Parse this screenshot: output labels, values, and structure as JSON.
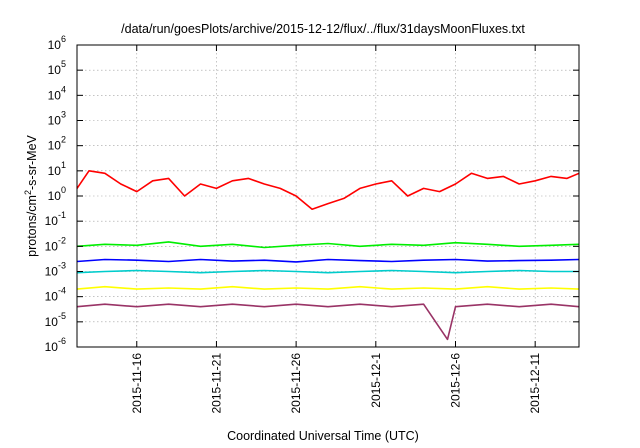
{
  "chart_data": {
    "type": "line",
    "title": "/data/run/goesPlots/archive/2015-12-12/flux/../flux/31daysMoonFluxes.txt",
    "xlabel": "Coordinated Universal Time (UTC)",
    "ylabel": {
      "base": "protons/cm",
      "sup": "2",
      "rest": "-s-sr-MeV"
    },
    "x_unit": "date",
    "xlim": [
      "2015-11-12T06:00",
      "2015-12-13T18:00"
    ],
    "x_ticks": [
      {
        "date": "2015-11-16",
        "label": "2015-11-16"
      },
      {
        "date": "2015-11-21",
        "label": "2015-11-21"
      },
      {
        "date": "2015-11-26",
        "label": "2015-11-26"
      },
      {
        "date": "2015-12-01",
        "label": "2015-12-1"
      },
      {
        "date": "2015-12-06",
        "label": "2015-12-6"
      },
      {
        "date": "2015-12-11",
        "label": "2015-12-11"
      }
    ],
    "y_scale": "log",
    "ylim": [
      1e-06,
      1000000.0
    ],
    "y_ticks": [
      {
        "value": 1e-06,
        "base": "10",
        "exp": "-6"
      },
      {
        "value": 1e-05,
        "base": "10",
        "exp": "-5"
      },
      {
        "value": 0.0001,
        "base": "10",
        "exp": "-4"
      },
      {
        "value": 0.001,
        "base": "10",
        "exp": "-3"
      },
      {
        "value": 0.01,
        "base": "10",
        "exp": "-2"
      },
      {
        "value": 0.1,
        "base": "10",
        "exp": "-1"
      },
      {
        "value": 1,
        "base": "10",
        "exp": "0"
      },
      {
        "value": 10,
        "base": "10",
        "exp": "1"
      },
      {
        "value": 100,
        "base": "10",
        "exp": "2"
      },
      {
        "value": 1000,
        "base": "10",
        "exp": "3"
      },
      {
        "value": 10000,
        "base": "10",
        "exp": "4"
      },
      {
        "value": 100000,
        "base": "10",
        "exp": "5"
      },
      {
        "value": 1000000,
        "base": "10",
        "exp": "6"
      }
    ],
    "grid": true,
    "legend": "none",
    "series": [
      {
        "color": "#ff0000",
        "x": [
          "2015-11-12T06:00",
          "2015-11-13T00:00",
          "2015-11-14T00:00",
          "2015-11-15T00:00",
          "2015-11-16T00:00",
          "2015-11-17T00:00",
          "2015-11-18T00:00",
          "2015-11-19T00:00",
          "2015-11-20T00:00",
          "2015-11-21T00:00",
          "2015-11-22T00:00",
          "2015-11-23T00:00",
          "2015-11-24T00:00",
          "2015-11-25T00:00",
          "2015-11-26T00:00",
          "2015-11-27T00:00",
          "2015-11-28T00:00",
          "2015-11-29T00:00",
          "2015-11-30T00:00",
          "2015-12-01T00:00",
          "2015-12-02T00:00",
          "2015-12-03T00:00",
          "2015-12-04T00:00",
          "2015-12-05T00:00",
          "2015-12-06T00:00",
          "2015-12-07T00:00",
          "2015-12-08T00:00",
          "2015-12-09T00:00",
          "2015-12-10T00:00",
          "2015-12-11T00:00",
          "2015-12-12T00:00",
          "2015-12-13T00:00",
          "2015-12-13T18:00"
        ],
        "y": [
          2,
          10,
          8,
          3,
          1.5,
          4,
          5,
          1,
          3,
          2,
          4,
          5,
          3,
          2,
          1,
          0.3,
          0.5,
          0.8,
          2,
          3,
          4,
          1,
          2,
          1.5,
          3,
          8,
          5,
          6,
          3,
          4,
          6,
          5,
          8
        ]
      },
      {
        "color": "#00ee00",
        "x": [
          "2015-11-12T06:00",
          "2015-11-14T00:00",
          "2015-11-16T00:00",
          "2015-11-18T00:00",
          "2015-11-20T00:00",
          "2015-11-22T00:00",
          "2015-11-24T00:00",
          "2015-11-26T00:00",
          "2015-11-28T00:00",
          "2015-11-30T00:00",
          "2015-12-02T00:00",
          "2015-12-04T00:00",
          "2015-12-06T00:00",
          "2015-12-08T00:00",
          "2015-12-10T00:00",
          "2015-12-12T00:00",
          "2015-12-13T18:00"
        ],
        "y": [
          0.01,
          0.012,
          0.011,
          0.015,
          0.01,
          0.012,
          0.009,
          0.011,
          0.013,
          0.01,
          0.012,
          0.011,
          0.014,
          0.012,
          0.01,
          0.011,
          0.012
        ]
      },
      {
        "color": "#0000ff",
        "x": [
          "2015-11-12T06:00",
          "2015-11-14T00:00",
          "2015-11-16T00:00",
          "2015-11-18T00:00",
          "2015-11-20T00:00",
          "2015-11-22T00:00",
          "2015-11-24T00:00",
          "2015-11-26T00:00",
          "2015-11-28T00:00",
          "2015-11-30T00:00",
          "2015-12-02T00:00",
          "2015-12-04T00:00",
          "2015-12-06T00:00",
          "2015-12-08T00:00",
          "2015-12-10T00:00",
          "2015-12-12T00:00",
          "2015-12-13T18:00"
        ],
        "y": [
          0.0025,
          0.003,
          0.0028,
          0.0025,
          0.003,
          0.0026,
          0.0028,
          0.0024,
          0.003,
          0.0027,
          0.0025,
          0.0028,
          0.003,
          0.0026,
          0.0027,
          0.0028,
          0.003
        ]
      },
      {
        "color": "#00cccc",
        "x": [
          "2015-11-12T06:00",
          "2015-11-14T00:00",
          "2015-11-16T00:00",
          "2015-11-18T00:00",
          "2015-11-20T00:00",
          "2015-11-22T00:00",
          "2015-11-24T00:00",
          "2015-11-26T00:00",
          "2015-11-28T00:00",
          "2015-11-30T00:00",
          "2015-12-02T00:00",
          "2015-12-04T00:00",
          "2015-12-06T00:00",
          "2015-12-08T00:00",
          "2015-12-10T00:00",
          "2015-12-12T00:00",
          "2015-12-13T18:00"
        ],
        "y": [
          0.0009,
          0.001,
          0.0011,
          0.001,
          0.0009,
          0.001,
          0.0011,
          0.001,
          0.0009,
          0.001,
          0.0011,
          0.001,
          0.0009,
          0.001,
          0.0011,
          0.001,
          0.001
        ]
      },
      {
        "color": "#ffff00",
        "x": [
          "2015-11-12T06:00",
          "2015-11-14T00:00",
          "2015-11-16T00:00",
          "2015-11-18T00:00",
          "2015-11-20T00:00",
          "2015-11-22T00:00",
          "2015-11-24T00:00",
          "2015-11-26T00:00",
          "2015-11-28T00:00",
          "2015-11-30T00:00",
          "2015-12-02T00:00",
          "2015-12-04T00:00",
          "2015-12-06T00:00",
          "2015-12-08T00:00",
          "2015-12-10T00:00",
          "2015-12-12T00:00",
          "2015-12-13T18:00"
        ],
        "y": [
          0.0002,
          0.00025,
          0.0002,
          0.00022,
          0.0002,
          0.00025,
          0.0002,
          0.00022,
          0.0002,
          0.00025,
          0.0002,
          0.00022,
          0.0002,
          0.00025,
          0.0002,
          0.00022,
          0.0002
        ]
      },
      {
        "color": "#993366",
        "x": [
          "2015-11-12T06:00",
          "2015-11-14T00:00",
          "2015-11-16T00:00",
          "2015-11-18T00:00",
          "2015-11-20T00:00",
          "2015-11-22T00:00",
          "2015-11-24T00:00",
          "2015-11-26T00:00",
          "2015-11-28T00:00",
          "2015-11-30T00:00",
          "2015-12-02T00:00",
          "2015-12-04T00:00",
          "2015-12-05T12:00",
          "2015-12-06T00:00",
          "2015-12-08T00:00",
          "2015-12-10T00:00",
          "2015-12-12T00:00",
          "2015-12-13T18:00"
        ],
        "y": [
          4e-05,
          5e-05,
          4e-05,
          5e-05,
          4e-05,
          5e-05,
          4e-05,
          5e-05,
          4e-05,
          5e-05,
          4e-05,
          5e-05,
          2e-06,
          4e-05,
          5e-05,
          4e-05,
          5e-05,
          4e-05
        ]
      }
    ]
  }
}
